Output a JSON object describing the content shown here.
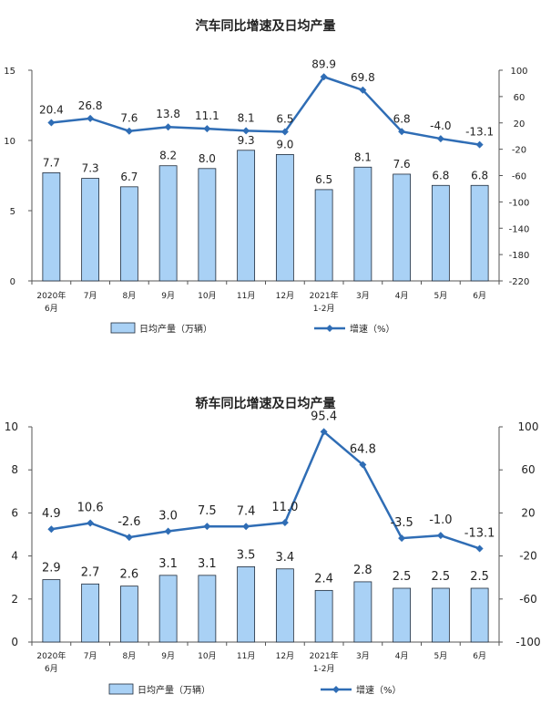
{
  "chart_data": [
    {
      "type": "bar",
      "title": "汽车同比增速及日均产量",
      "categories": [
        "2020年\n6月",
        "7月",
        "8月",
        "9月",
        "10月",
        "11月",
        "12月",
        "2021年\n1-2月",
        "3月",
        "4月",
        "5月",
        "6月"
      ],
      "series": [
        {
          "name": "日均产量（万辆）",
          "type": "bar",
          "axis": "left",
          "values": [
            7.7,
            7.3,
            6.7,
            8.2,
            8.0,
            9.3,
            9.0,
            6.5,
            8.1,
            7.6,
            6.8,
            6.8
          ]
        },
        {
          "name": "增速（%）",
          "type": "line",
          "axis": "right",
          "values": [
            20.4,
            26.8,
            7.6,
            13.8,
            11.1,
            8.1,
            6.5,
            89.9,
            69.8,
            6.8,
            -4.0,
            -13.1
          ]
        }
      ],
      "left_axis": {
        "min": 0,
        "max": 15,
        "ticks": [
          0,
          5,
          10,
          15
        ]
      },
      "right_axis": {
        "min": -220,
        "max": 100,
        "ticks": [
          100,
          60,
          20,
          -20,
          -60,
          -100,
          -140,
          -180,
          -220
        ]
      },
      "legend_position": "bottom",
      "grid": false
    },
    {
      "type": "bar",
      "title": "轿车同比增速及日均产量",
      "categories": [
        "2020年\n6月",
        "7月",
        "8月",
        "9月",
        "10月",
        "11月",
        "12月",
        "2021年\n1-2月",
        "3月",
        "4月",
        "5月",
        "6月"
      ],
      "series": [
        {
          "name": "日均产量（万辆）",
          "type": "bar",
          "axis": "left",
          "values": [
            2.9,
            2.7,
            2.6,
            3.1,
            3.1,
            3.5,
            3.4,
            2.4,
            2.8,
            2.5,
            2.5,
            2.5
          ]
        },
        {
          "name": "增速（%）",
          "type": "line",
          "axis": "right",
          "values": [
            4.9,
            10.6,
            -2.6,
            3.0,
            7.5,
            7.4,
            11.0,
            95.4,
            64.8,
            -3.5,
            -1.0,
            -13.1
          ]
        }
      ],
      "left_axis": {
        "min": 0,
        "max": 10,
        "ticks": [
          0,
          2,
          4,
          6,
          8,
          10
        ]
      },
      "right_axis": {
        "min": -100,
        "max": 100,
        "ticks": [
          100,
          60,
          20,
          -20,
          -60,
          -100
        ]
      },
      "legend_position": "bottom",
      "grid": false
    }
  ],
  "colors": {
    "bar_fill": "#a9d1f5",
    "bar_stroke": "#1f2b3a",
    "line": "#2f6db5",
    "axis": "#555555",
    "text": "#222222"
  }
}
